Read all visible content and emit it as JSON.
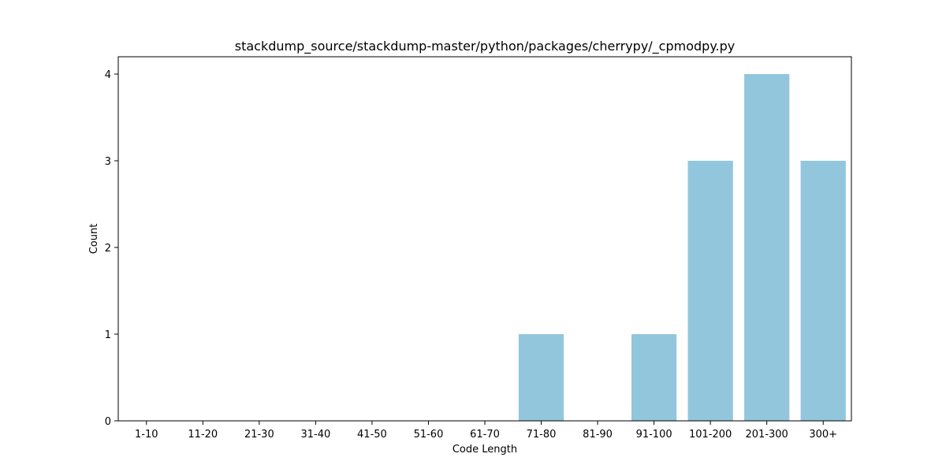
{
  "chart_data": {
    "type": "bar",
    "title": "stackdump_source/stackdump-master/python/packages/cherrypy/_cpmodpy.py",
    "xlabel": "Code Length",
    "ylabel": "Count",
    "categories": [
      "1-10",
      "11-20",
      "21-30",
      "31-40",
      "41-50",
      "51-60",
      "61-70",
      "71-80",
      "81-90",
      "91-100",
      "101-200",
      "201-300",
      "300+"
    ],
    "values": [
      0,
      0,
      0,
      0,
      0,
      0,
      0,
      1,
      0,
      1,
      3,
      4,
      3
    ],
    "ylim": [
      0,
      4.2
    ],
    "yticks": [
      0,
      1,
      2,
      3,
      4
    ],
    "grid": false,
    "bar_color": "#92c6dd"
  }
}
